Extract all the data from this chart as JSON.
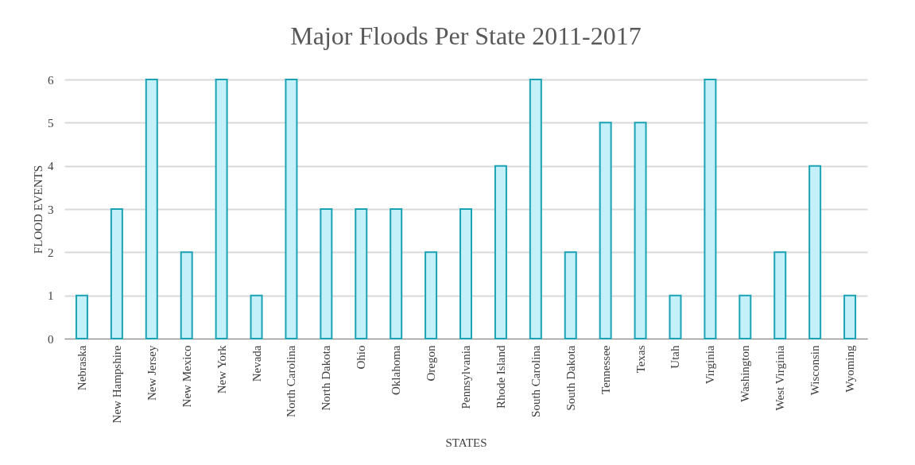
{
  "chart_data": {
    "type": "bar",
    "title": "Major Floods Per State 2011-2017",
    "xlabel": "STATES",
    "ylabel": "FLOOD EVENTS",
    "categories": [
      "Nebraska",
      "New Hampshire",
      "New Jersey",
      "New Mexico",
      "New York",
      "Nevada",
      "North Carolina",
      "North Dakota",
      "Ohio",
      "Oklahoma",
      "Oregon",
      "Pennsylvania",
      "Rhode Island",
      "South Carolina",
      "South Dakota",
      "Tennessee",
      "Texas",
      "Utah",
      "Virginia",
      "Washington",
      "West Virginia",
      "Wisconsin",
      "Wyoming"
    ],
    "series": [
      {
        "color": "#c4f1f9",
        "values": [
          1,
          3,
          6,
          2,
          6,
          1,
          6,
          3,
          3,
          3,
          2,
          3,
          4,
          6,
          2,
          5,
          5,
          1,
          6,
          1,
          2,
          4,
          1
        ]
      }
    ],
    "ylim": [
      0,
      6
    ],
    "yticks": [
      0,
      1,
      2,
      3,
      4,
      5,
      6
    ],
    "grid": "y",
    "legend": false
  }
}
